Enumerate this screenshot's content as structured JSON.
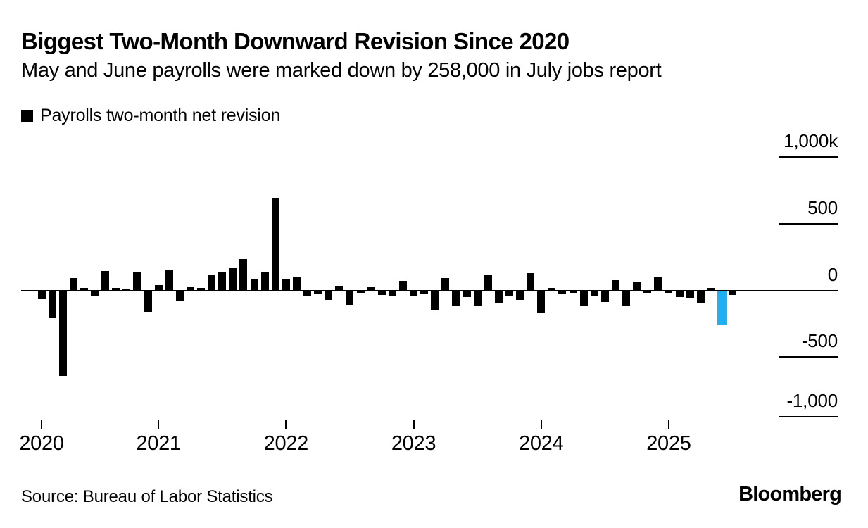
{
  "header": {
    "title": "Biggest Two-Month Downward Revision Since 2020",
    "subtitle": "May and June payrolls were marked down by 258,000 in July jobs report"
  },
  "legend": {
    "label": "Payrolls two-month net revision"
  },
  "chart_data": {
    "type": "bar",
    "title": "Biggest Two-Month Downward Revision Since 2020",
    "subtitle": "May and June payrolls were marked down by 258,000 in July jobs report",
    "series_name": "Payrolls two-month net revision",
    "unit": "thousands of jobs (k)",
    "ylim": [
      -1000,
      1000
    ],
    "yticks": [
      1000,
      500,
      0,
      -500,
      -1000
    ],
    "ytick_labels": {
      "0": "1,000k",
      "1": "500",
      "2": "0",
      "3": "-500",
      "4": "-1,000"
    },
    "xtick_labels": [
      "2020",
      "2021",
      "2022",
      "2023",
      "2024",
      "2025"
    ],
    "grid": "zero baseline across plot; short right-edge tick rules; no vertical gridlines",
    "legend_position": "top-left",
    "bar_color": "#000000",
    "highlight": {
      "index": 64,
      "value": -258,
      "color": "#1db0f4",
      "note": "July jobs report two-month net revision"
    },
    "x": [
      "2020-02",
      "2020-03",
      "2020-04",
      "2020-05",
      "2020-06",
      "2020-07",
      "2020-08",
      "2020-09",
      "2020-10",
      "2020-11",
      "2020-12",
      "2021-01",
      "2021-02",
      "2021-03",
      "2021-04",
      "2021-05",
      "2021-06",
      "2021-07",
      "2021-08",
      "2021-09",
      "2021-10",
      "2021-11",
      "2021-12",
      "2022-01",
      "2022-02",
      "2022-03",
      "2022-04",
      "2022-05",
      "2022-06",
      "2022-07",
      "2022-08",
      "2022-09",
      "2022-10",
      "2022-11",
      "2022-12",
      "2023-01",
      "2023-02",
      "2023-03",
      "2023-04",
      "2023-05",
      "2023-06",
      "2023-07",
      "2023-08",
      "2023-09",
      "2023-10",
      "2023-11",
      "2023-12",
      "2024-01",
      "2024-02",
      "2024-03",
      "2024-04",
      "2024-05",
      "2024-06",
      "2024-07",
      "2024-08",
      "2024-09",
      "2024-10",
      "2024-11",
      "2024-12",
      "2025-01",
      "2025-02",
      "2025-03",
      "2025-04",
      "2025-05",
      "2025-06",
      "2025-07"
    ],
    "values": [
      -60,
      -200,
      -645,
      95,
      22,
      -33,
      152,
      20,
      16,
      146,
      -157,
      43,
      163,
      -70,
      33,
      22,
      125,
      141,
      179,
      244,
      87,
      146,
      709,
      92,
      103,
      -38,
      -22,
      -65,
      38,
      -103,
      -10,
      33,
      -27,
      -33,
      76,
      -38,
      -16,
      -146,
      98,
      -108,
      -43,
      -114,
      125,
      -92,
      -33,
      -65,
      135,
      -163,
      22,
      -22,
      -11,
      -108,
      -33,
      -81,
      81,
      -114,
      65,
      -8,
      103,
      -8,
      -43,
      -54,
      -92,
      22,
      -258,
      -25
    ]
  },
  "footer": {
    "source": "Source: Bureau of Labor Statistics",
    "brand": "Bloomberg"
  }
}
